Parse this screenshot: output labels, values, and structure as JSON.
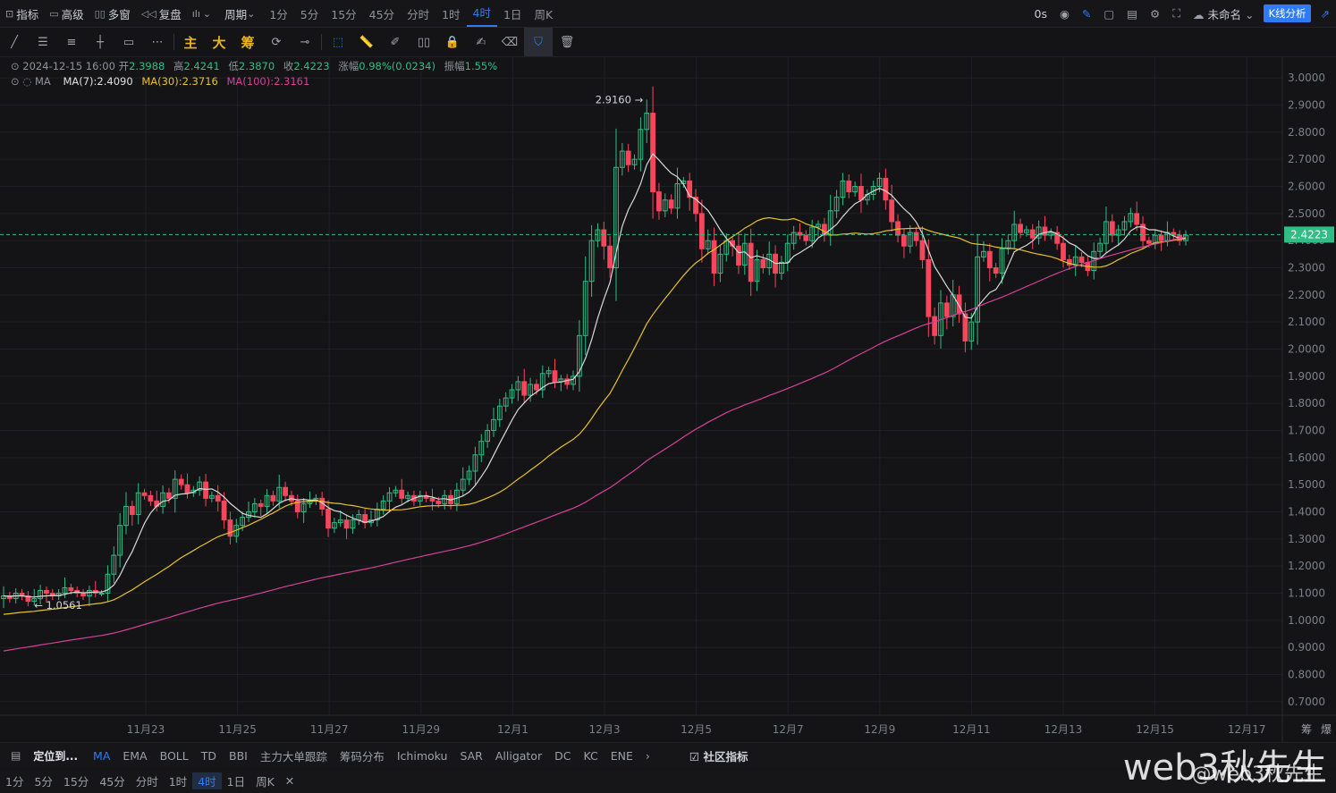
{
  "topbar": {
    "indicator": "指标",
    "advanced": "高级",
    "multi_window": "多窗",
    "replay": "复盘",
    "period": "周期",
    "intervals": [
      "1分",
      "5分",
      "15分",
      "45分",
      "分时",
      "1时",
      "4时",
      "1日",
      "周K"
    ],
    "active_interval": "4时",
    "countdown": "0s",
    "layout_name": "未命名",
    "kline_analysis": "K线分析"
  },
  "drawbar": {
    "main": "主",
    "big": "大",
    "chips": "筹"
  },
  "ohlc": {
    "datetime": "2024-12-15 16:00",
    "open_label": "开",
    "open": "2.3988",
    "high_label": "高",
    "high": "2.4241",
    "low_label": "低",
    "low": "2.3870",
    "close_label": "收",
    "close": "2.4223",
    "change_label": "涨幅",
    "change": "0.98%(0.0234)",
    "amplitude_label": "振幅",
    "amplitude": "1.55%"
  },
  "ma_legend": {
    "label": "MA",
    "ma7": "MA(7):2.4090",
    "ma30": "MA(30):2.3716",
    "ma100": "MA(100):2.3161"
  },
  "colors": {
    "up": "#2ebd85",
    "down": "#f6465d",
    "ma7": "#d9d9d9",
    "ma30": "#e6c229",
    "ma100": "#d6409a",
    "accent": "#2e7bf6"
  },
  "chart_data": {
    "type": "candlestick",
    "ylim": [
      0.65,
      3.05
    ],
    "y_ticks": [
      "3.0000",
      "2.9000",
      "2.8000",
      "2.7000",
      "2.6000",
      "2.5000",
      "2.4000",
      "2.3000",
      "2.2000",
      "2.1000",
      "2.0000",
      "1.9000",
      "1.8000",
      "1.7000",
      "1.6000",
      "1.5000",
      "1.4000",
      "1.3000",
      "1.2000",
      "1.1000",
      "1.0000",
      "0.9000",
      "0.8000",
      "0.7000"
    ],
    "x_ticks": [
      "11月23",
      "11月25",
      "11月27",
      "11月29",
      "12月1",
      "12月3",
      "12月5",
      "12月7",
      "12月9",
      "12月11",
      "12月13",
      "12月15",
      "12月17"
    ],
    "current_price": "2.4223",
    "high_marker": "2.9160",
    "low_marker": "1.0561",
    "corner_labels": [
      "筹",
      "爆"
    ],
    "closes": [
      1.09,
      1.08,
      1.1,
      1.09,
      1.07,
      1.08,
      1.11,
      1.1,
      1.09,
      1.1,
      1.12,
      1.11,
      1.1,
      1.09,
      1.11,
      1.1,
      1.1,
      1.17,
      1.24,
      1.35,
      1.42,
      1.39,
      1.47,
      1.46,
      1.44,
      1.42,
      1.47,
      1.45,
      1.52,
      1.5,
      1.47,
      1.48,
      1.51,
      1.45,
      1.46,
      1.44,
      1.37,
      1.31,
      1.35,
      1.38,
      1.4,
      1.43,
      1.42,
      1.46,
      1.44,
      1.49,
      1.46,
      1.44,
      1.4,
      1.43,
      1.44,
      1.45,
      1.41,
      1.34,
      1.36,
      1.37,
      1.34,
      1.37,
      1.39,
      1.36,
      1.37,
      1.41,
      1.44,
      1.47,
      1.48,
      1.45,
      1.46,
      1.44,
      1.46,
      1.45,
      1.44,
      1.43,
      1.46,
      1.43,
      1.48,
      1.52,
      1.55,
      1.61,
      1.66,
      1.7,
      1.74,
      1.79,
      1.82,
      1.85,
      1.88,
      1.83,
      1.87,
      1.85,
      1.91,
      1.92,
      1.88,
      1.89,
      1.87,
      1.9,
      2.05,
      2.25,
      2.4,
      2.44,
      2.38,
      2.3,
      2.67,
      2.73,
      2.68,
      2.7,
      2.81,
      2.87,
      2.58,
      2.51,
      2.55,
      2.52,
      2.61,
      2.62,
      2.56,
      2.5,
      2.37,
      2.4,
      2.28,
      2.35,
      2.4,
      2.38,
      2.31,
      2.39,
      2.25,
      2.33,
      2.3,
      2.35,
      2.28,
      2.32,
      2.39,
      2.43,
      2.42,
      2.4,
      2.45,
      2.46,
      2.42,
      2.51,
      2.56,
      2.62,
      2.58,
      2.6,
      2.55,
      2.57,
      2.6,
      2.63,
      2.55,
      2.47,
      2.42,
      2.38,
      2.43,
      2.4,
      2.33,
      2.12,
      2.05,
      2.17,
      2.12,
      2.2,
      2.13,
      2.03,
      2.1,
      2.34,
      2.36,
      2.3,
      2.28,
      2.37,
      2.4,
      2.46,
      2.43,
      2.44,
      2.41,
      2.45,
      2.42,
      2.43,
      2.39,
      2.33,
      2.31,
      2.34,
      2.32,
      2.29,
      2.36,
      2.39,
      2.47,
      2.42,
      2.44,
      2.47,
      2.5,
      2.46,
      2.4,
      2.39,
      2.42,
      2.4,
      2.43,
      2.42,
      2.4,
      2.42
    ],
    "ma7": [],
    "ma30_start": 1.02,
    "ma100_start": 0.71
  },
  "bottombar": {
    "locate": "定位到...",
    "indicators": [
      "MA",
      "EMA",
      "BOLL",
      "TD",
      "BBI",
      "主力大单跟踪",
      "筹码分布",
      "Ichimoku",
      "SAR",
      "Alligator",
      "DC",
      "KC",
      "ENE"
    ],
    "community": "社区指标",
    "intervals": [
      "1分",
      "5分",
      "15分",
      "45分",
      "分时",
      "1时",
      "4时",
      "1日",
      "周K"
    ]
  },
  "watermark": {
    "main": "web3秋先生",
    "sub": "@web3秋先生"
  }
}
